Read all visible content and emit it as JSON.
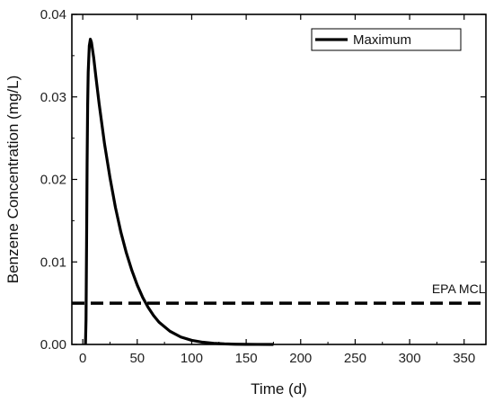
{
  "chart_data": {
    "type": "line",
    "xlabel": "Time (d)",
    "ylabel": "Benzene Concentration (mg/L)",
    "xlim": [
      -10,
      370
    ],
    "ylim": [
      0,
      0.04
    ],
    "x_ticks": [
      0,
      50,
      100,
      150,
      200,
      250,
      300,
      350
    ],
    "x_tick_labels": [
      "0",
      "50",
      "100",
      "150",
      "200",
      "250",
      "300",
      "350"
    ],
    "y_ticks": [
      0,
      0.01,
      0.02,
      0.03,
      0.04
    ],
    "y_tick_labels": [
      "0.00",
      "0.01",
      "0.02",
      "0.03",
      "0.04"
    ],
    "grid": false,
    "legend_position": "top-right",
    "series": [
      {
        "name": "Maximum",
        "style": "solid",
        "color": "#000000",
        "x": [
          2.5,
          3,
          3.5,
          4,
          4.5,
          5,
          6,
          7,
          8,
          10,
          12,
          15,
          20,
          25,
          30,
          35,
          40,
          45,
          50,
          55,
          60,
          65,
          70,
          80,
          90,
          100,
          110,
          120,
          130,
          140,
          150,
          160,
          175
        ],
        "y": [
          0,
          0.003,
          0.012,
          0.022,
          0.029,
          0.033,
          0.0362,
          0.037,
          0.0366,
          0.0348,
          0.0325,
          0.0292,
          0.0243,
          0.0202,
          0.0166,
          0.0136,
          0.0111,
          0.009,
          0.0072,
          0.0057,
          0.0045,
          0.0035,
          0.0027,
          0.0016,
          0.0009,
          0.0005,
          0.00027,
          0.00014,
          7e-05,
          3e-05,
          1e-05,
          5e-06,
          0.0
        ]
      },
      {
        "name": "EPA MCL",
        "style": "dashed",
        "color": "#000000",
        "x": [
          -10,
          370
        ],
        "y": [
          0.005,
          0.005
        ]
      }
    ],
    "legend": [
      {
        "label": "Maximum"
      }
    ],
    "annotations": [
      {
        "text": "EPA MCL",
        "x": 345,
        "y": 0.0062
      }
    ]
  }
}
